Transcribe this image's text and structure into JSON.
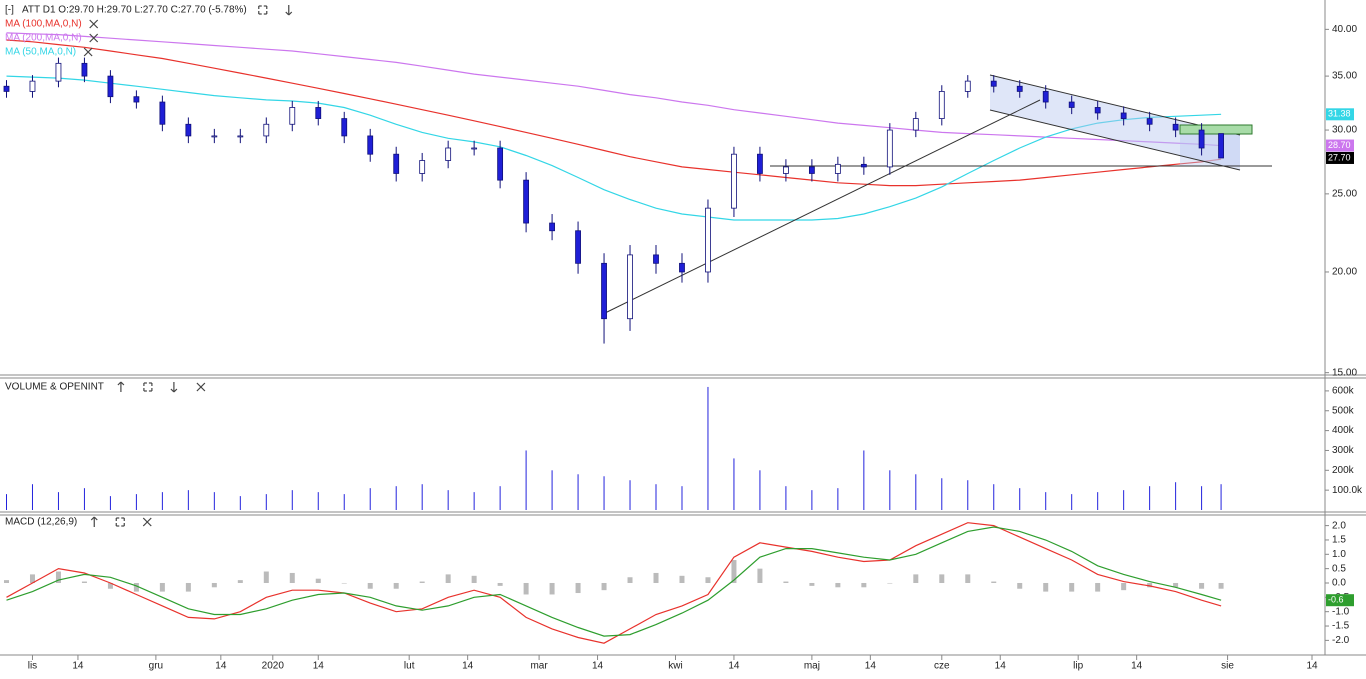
{
  "header": {
    "collapse": "[-]",
    "text": "ATT  D1  O:29.70  H:29.70  L:27.70  C:27.70  (-5.78%)"
  },
  "xaxis": {
    "xlim": [
      -5,
      199
    ],
    "xticks": [
      {
        "value": 0,
        "label": "lis"
      },
      {
        "value": 7,
        "label": "14"
      },
      {
        "value": 19,
        "label": "gru"
      },
      {
        "value": 29,
        "label": "14"
      },
      {
        "value": 37,
        "label": "2020"
      },
      {
        "value": 44,
        "label": "14"
      },
      {
        "value": 58,
        "label": "lut"
      },
      {
        "value": 67,
        "label": "14"
      },
      {
        "value": 78,
        "label": "mar"
      },
      {
        "value": 87,
        "label": "14"
      },
      {
        "value": 99,
        "label": "kwi"
      },
      {
        "value": 108,
        "label": "14"
      },
      {
        "value": 120,
        "label": "maj"
      },
      {
        "value": 129,
        "label": "14"
      },
      {
        "value": 140,
        "label": "cze"
      },
      {
        "value": 149,
        "label": "14"
      },
      {
        "value": 161,
        "label": "lip"
      },
      {
        "value": 170,
        "label": "14"
      },
      {
        "value": 184,
        "label": "sie"
      },
      {
        "value": 197,
        "label": "14"
      }
    ]
  },
  "chart_data": [
    {
      "type": "candlestick",
      "log_scale": true,
      "grid": false,
      "up_color": "#ffffff",
      "down_color": "#1f1fd6",
      "edge_color": "#10107a",
      "last_color": "#000000",
      "last_label": "27.70",
      "x": [
        -4,
        0,
        4,
        8,
        12,
        16,
        20,
        24,
        28,
        32,
        36,
        40,
        44,
        48,
        52,
        56,
        60,
        64,
        68,
        72,
        76,
        80,
        84,
        88,
        92,
        96,
        100,
        104,
        108,
        112,
        116,
        120,
        124,
        128,
        132,
        136,
        140,
        144,
        148,
        152,
        156,
        160,
        164,
        168,
        172,
        176,
        180,
        183
      ],
      "open": [
        34,
        33.5,
        34.5,
        36.3,
        35,
        33,
        32.5,
        30.5,
        29.5,
        29.5,
        29.5,
        30.5,
        32,
        31,
        29.5,
        28,
        26.5,
        27.5,
        28.5,
        28.5,
        26,
        23,
        22.5,
        20.5,
        17.5,
        21,
        20.5,
        20,
        24,
        28,
        26.5,
        27,
        26.5,
        27.2,
        27,
        30,
        31,
        33.5,
        34.5,
        34,
        33.5,
        32.5,
        32,
        31.5,
        31,
        30.5,
        30,
        29.7
      ],
      "high": [
        34.6,
        35.1,
        36.9,
        36.9,
        35.6,
        33.6,
        33.1,
        31.1,
        30.1,
        30.1,
        31.1,
        32.6,
        32.6,
        31.6,
        30.1,
        28.6,
        28.1,
        29.1,
        29.1,
        29.1,
        26.6,
        23.6,
        23.1,
        21.1,
        21.6,
        21.6,
        21.1,
        24.6,
        28.6,
        28.6,
        27.6,
        27.6,
        27.8,
        27.8,
        30.6,
        31.6,
        34.1,
        35.1,
        35.1,
        34.6,
        34.1,
        33.1,
        32.6,
        32.1,
        31.6,
        31.1,
        30.6,
        29.7
      ],
      "low": [
        32.9,
        32.9,
        33.9,
        34.4,
        32.4,
        31.9,
        29.9,
        28.9,
        28.9,
        28.9,
        28.9,
        29.9,
        30.4,
        28.9,
        27.4,
        25.9,
        25.9,
        26.9,
        27.9,
        25.4,
        22.4,
        21.9,
        19.9,
        16.3,
        16.9,
        19.9,
        19.4,
        19.4,
        23.4,
        25.9,
        25.9,
        25.9,
        25.9,
        26.4,
        26.4,
        29.4,
        30.4,
        32.9,
        33.4,
        32.9,
        31.9,
        31.4,
        30.9,
        30.4,
        29.9,
        29.4,
        27.9,
        27.7
      ],
      "close": [
        33.5,
        34.5,
        36.3,
        35,
        33,
        32.5,
        30.5,
        29.5,
        29.5,
        29.5,
        30.5,
        32,
        31,
        29.5,
        28,
        26.5,
        27.5,
        28.5,
        28.5,
        26,
        23,
        22.5,
        20.5,
        17.5,
        21,
        20.5,
        20,
        24,
        28,
        26.5,
        27,
        26.5,
        27.2,
        27,
        30,
        31,
        33.5,
        34.5,
        34,
        33.5,
        32.5,
        32,
        31.5,
        31,
        30.5,
        30,
        28.5,
        27.7
      ],
      "ylim": [
        14.9,
        43.5
      ],
      "yticks": [
        {
          "value": 15,
          "label": "15.00"
        },
        {
          "value": 20,
          "label": "20.00"
        },
        {
          "value": 25,
          "label": "25.00"
        },
        {
          "value": 30,
          "label": "30.00"
        },
        {
          "value": 35,
          "label": "35.00"
        },
        {
          "value": 40,
          "label": "40.00"
        }
      ],
      "series": [
        {
          "name": "MA (100,MA,0,N)",
          "color": "#e8322c",
          "values": [
            38.8,
            38.6,
            38.3,
            38.0,
            37.6,
            37.2,
            36.8,
            36.3,
            35.8,
            35.3,
            34.8,
            34.3,
            33.8,
            33.3,
            32.8,
            32.3,
            31.8,
            31.3,
            30.8,
            30.3,
            29.8,
            29.3,
            28.8,
            28.3,
            27.8,
            27.4,
            27.0,
            26.8,
            26.6,
            26.4,
            26.2,
            26.0,
            25.8,
            25.7,
            25.6,
            25.6,
            25.7,
            25.8,
            25.9,
            26.0,
            26.2,
            26.4,
            26.6,
            26.8,
            27.0,
            27.2,
            27.4,
            27.6
          ]
        },
        {
          "name": "MA (200,MA,0,N)",
          "color": "#cc77ee",
          "last_label": "28.70",
          "values": [
            39.6,
            39.5,
            39.4,
            39.2,
            39.0,
            38.8,
            38.6,
            38.4,
            38.2,
            38.0,
            37.8,
            37.6,
            37.3,
            37.0,
            36.7,
            36.4,
            36.0,
            35.6,
            35.2,
            34.9,
            34.6,
            34.3,
            34.0,
            33.6,
            33.2,
            32.9,
            32.5,
            32.2,
            31.8,
            31.5,
            31.2,
            30.9,
            30.6,
            30.4,
            30.2,
            30.0,
            29.8,
            29.7,
            29.6,
            29.5,
            29.4,
            29.3,
            29.2,
            29.1,
            29.0,
            28.9,
            28.8,
            28.7
          ]
        },
        {
          "name": "MA (50,MA,0,N)",
          "color": "#33d6e6",
          "last_label": "31.38",
          "values": [
            35.0,
            34.9,
            34.8,
            34.6,
            34.3,
            34.0,
            33.7,
            33.4,
            33.1,
            32.9,
            32.7,
            32.6,
            32.4,
            32.0,
            31.3,
            30.5,
            29.8,
            29.3,
            29.0,
            28.6,
            27.9,
            27.1,
            26.2,
            25.3,
            24.6,
            24.0,
            23.6,
            23.4,
            23.2,
            23.2,
            23.2,
            23.2,
            23.3,
            23.6,
            24.1,
            24.7,
            25.5,
            26.5,
            27.5,
            28.5,
            29.4,
            30.1,
            30.6,
            30.9,
            31.1,
            31.2,
            31.3,
            31.38
          ]
        }
      ]
    },
    {
      "type": "bar",
      "title": "VOLUME & OPENINT",
      "color": "#2222dd",
      "ylim": [
        0,
        665000
      ],
      "yticks": [
        {
          "value": 100000,
          "label": "100.0k"
        },
        {
          "value": 200000,
          "label": "200k"
        },
        {
          "value": 300000,
          "label": "300k"
        },
        {
          "value": 400000,
          "label": "400k"
        },
        {
          "value": 500000,
          "label": "500k"
        },
        {
          "value": 600000,
          "label": "600k"
        }
      ],
      "values": [
        80000,
        130000,
        90000,
        110000,
        70000,
        80000,
        90000,
        100000,
        90000,
        70000,
        80000,
        100000,
        90000,
        80000,
        110000,
        120000,
        130000,
        100000,
        90000,
        120000,
        300000,
        200000,
        180000,
        170000,
        150000,
        130000,
        120000,
        620000,
        260000,
        200000,
        120000,
        100000,
        110000,
        300000,
        200000,
        180000,
        160000,
        150000,
        130000,
        110000,
        90000,
        80000,
        90000,
        100000,
        120000,
        140000,
        120000,
        130000
      ]
    },
    {
      "type": "macd",
      "title": "MACD (12,26,9)",
      "ylim": [
        -2.51,
        2.37
      ],
      "yticks": [
        {
          "value": -2,
          "label": "-2.0"
        },
        {
          "value": -1.5,
          "label": "-1.5"
        },
        {
          "value": -1,
          "label": "-1.0"
        },
        {
          "value": -0.5,
          "label": "-0.5"
        },
        {
          "value": 0,
          "label": "0.0"
        },
        {
          "value": 0.5,
          "label": "0.5"
        },
        {
          "value": 1,
          "label": "1.0"
        },
        {
          "value": 1.5,
          "label": "1.5"
        },
        {
          "value": 2,
          "label": "2.0"
        }
      ],
      "histogram": {
        "color": "#bbbbbb",
        "values": [
          0.1,
          0.3,
          0.4,
          0.05,
          -0.2,
          -0.3,
          -0.3,
          -0.3,
          -0.15,
          0.1,
          0.4,
          0.35,
          0.15,
          0,
          -0.2,
          -0.2,
          0.05,
          0.3,
          0.25,
          -0.1,
          -0.4,
          -0.4,
          -0.35,
          -0.25,
          0.2,
          0.35,
          0.25,
          0.2,
          0.8,
          0.5,
          0.05,
          -0.1,
          -0.15,
          -0.15,
          0,
          0.3,
          0.3,
          0.3,
          0.05,
          -0.2,
          -0.3,
          -0.3,
          -0.3,
          -0.25,
          -0.15,
          -0.15,
          -0.2,
          -0.2
        ]
      },
      "series": [
        {
          "color": "#e8322c",
          "values": [
            -0.5,
            0.0,
            0.5,
            0.35,
            0.0,
            -0.4,
            -0.8,
            -1.2,
            -1.25,
            -1.0,
            -0.5,
            -0.25,
            -0.25,
            -0.35,
            -0.7,
            -1.0,
            -0.9,
            -0.5,
            -0.25,
            -0.5,
            -1.2,
            -1.6,
            -1.9,
            -2.1,
            -1.6,
            -1.1,
            -0.8,
            -0.4,
            0.9,
            1.4,
            1.25,
            1.1,
            0.9,
            0.75,
            0.8,
            1.3,
            1.7,
            2.1,
            2.0,
            1.6,
            1.2,
            0.8,
            0.3,
            0.05,
            -0.1,
            -0.3,
            -0.6,
            -0.8
          ]
        },
        {
          "color": "#2e9e2e",
          "last_label": "-0.6",
          "values": [
            -0.6,
            -0.3,
            0.1,
            0.3,
            0.2,
            -0.1,
            -0.5,
            -0.9,
            -1.1,
            -1.1,
            -0.9,
            -0.6,
            -0.4,
            -0.35,
            -0.5,
            -0.8,
            -0.95,
            -0.8,
            -0.5,
            -0.4,
            -0.8,
            -1.2,
            -1.55,
            -1.85,
            -1.8,
            -1.45,
            -1.05,
            -0.6,
            0.1,
            0.9,
            1.2,
            1.2,
            1.05,
            0.9,
            0.8,
            1.0,
            1.4,
            1.8,
            1.95,
            1.8,
            1.5,
            1.1,
            0.6,
            0.3,
            0.05,
            -0.15,
            -0.4,
            -0.6
          ]
        }
      ]
    }
  ]
}
